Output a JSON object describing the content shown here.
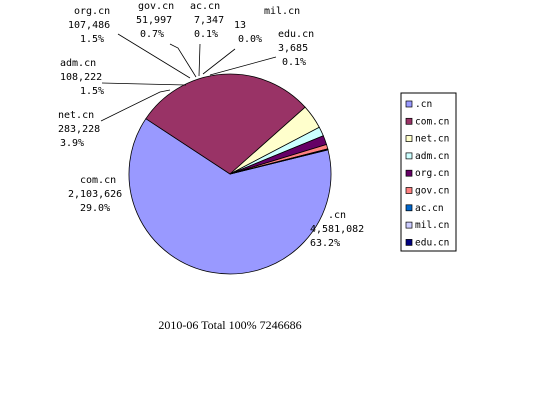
{
  "caption": "2010-06 Total  100%  7246686",
  "colors": {
    "cn": "#9999ff",
    "com.cn": "#993366",
    "net.cn": "#ffffcc",
    "adm.cn": "#ccffff",
    "org.cn": "#660066",
    "gov.cn": "#ff8080",
    "ac.cn": "#0066cc",
    "mil.cn": "#ccccff",
    "edu.cn": "#000080"
  },
  "chart_data": {
    "type": "pie",
    "title": "2010-06 Total  100%  7246686",
    "legend_position": "right",
    "slices": [
      {
        "key": "cn",
        "name": ".cn",
        "value": 4581082,
        "value_label": "4,581,082",
        "percent_label": "63.2%"
      },
      {
        "key": "com.cn",
        "name": "com.cn",
        "value": 2103626,
        "value_label": "2,103,626",
        "percent_label": "29.0%"
      },
      {
        "key": "net.cn",
        "name": "net.cn",
        "value": 283228,
        "value_label": "283,228",
        "percent_label": "3.9%"
      },
      {
        "key": "adm.cn",
        "name": "adm.cn",
        "value": 108222,
        "value_label": "108,222",
        "percent_label": "1.5%"
      },
      {
        "key": "org.cn",
        "name": "org.cn",
        "value": 107486,
        "value_label": "107,486",
        "percent_label": "1.5%"
      },
      {
        "key": "gov.cn",
        "name": "gov.cn",
        "value": 51997,
        "value_label": "51,997",
        "percent_label": "0.7%"
      },
      {
        "key": "ac.cn",
        "name": "ac.cn",
        "value": 7347,
        "value_label": "7,347",
        "percent_label": "0.1%"
      },
      {
        "key": "mil.cn",
        "name": "mil.cn",
        "value": 13,
        "value_label": "13",
        "percent_label": "0.0%"
      },
      {
        "key": "edu.cn",
        "name": "edu.cn",
        "value": 3685,
        "value_label": "3,685",
        "percent_label": "0.1%"
      }
    ]
  }
}
